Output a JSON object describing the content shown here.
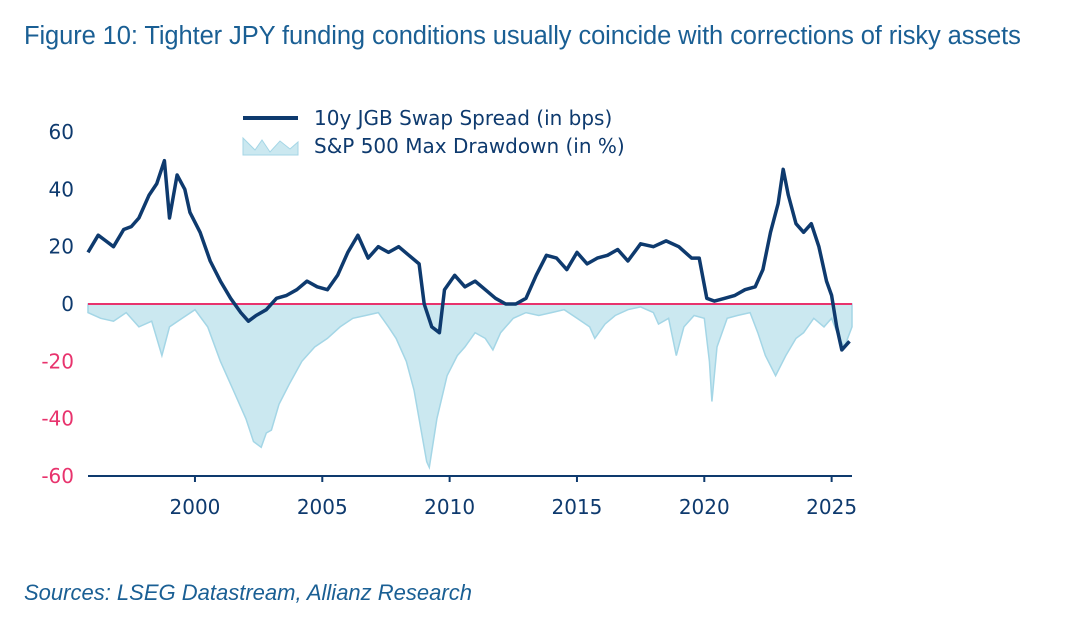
{
  "title": "Figure 10: Tighter JPY funding conditions usually coincide with corrections of risky assets",
  "source": "Sources: LSEG Datastream, Allianz Research",
  "colors": {
    "spread_line": "#0e3a6e",
    "drawdown_fill": "#cbe8f0",
    "drawdown_line": "#a4d6e6",
    "zero_line": "#e8336d",
    "positive_tick": "#0e3a6e",
    "negative_tick": "#e8336d",
    "title": "#1a5f94"
  },
  "chart_data": {
    "type": "line",
    "xlim": [
      1995.8,
      2025.8
    ],
    "ylim": [
      -60,
      60
    ],
    "x_ticks": [
      2000,
      2005,
      2010,
      2015,
      2020,
      2025
    ],
    "x_tick_labels": [
      "2000",
      "2005",
      "2010",
      "2015",
      "2020",
      "2025"
    ],
    "y_ticks": [
      60,
      40,
      20,
      0,
      -20,
      -40,
      -60
    ],
    "y_tick_labels": [
      "60",
      "40",
      "20",
      "0",
      "-20",
      "-40",
      "-60"
    ],
    "legend_position": "top-center",
    "grid": false,
    "series": [
      {
        "name": "10y JGB Swap Spread (in bps)",
        "type": "line",
        "x": [
          1995.8,
          1996.2,
          1996.5,
          1996.8,
          1997.2,
          1997.5,
          1997.8,
          1998.2,
          1998.5,
          1998.8,
          1999.0,
          1999.3,
          1999.6,
          1999.8,
          2000.2,
          2000.6,
          2001.0,
          2001.4,
          2001.8,
          2002.1,
          2002.4,
          2002.8,
          2003.2,
          2003.6,
          2004.0,
          2004.4,
          2004.8,
          2005.2,
          2005.6,
          2006.0,
          2006.4,
          2006.8,
          2007.2,
          2007.6,
          2008.0,
          2008.4,
          2008.8,
          2009.0,
          2009.3,
          2009.6,
          2009.8,
          2010.2,
          2010.6,
          2011.0,
          2011.4,
          2011.8,
          2012.2,
          2012.6,
          2013.0,
          2013.4,
          2013.8,
          2014.2,
          2014.6,
          2015.0,
          2015.4,
          2015.8,
          2016.2,
          2016.6,
          2017.0,
          2017.5,
          2018.0,
          2018.5,
          2019.0,
          2019.5,
          2019.8,
          2020.1,
          2020.4,
          2020.8,
          2021.2,
          2021.6,
          2022.0,
          2022.3,
          2022.6,
          2022.9,
          2023.1,
          2023.3,
          2023.6,
          2023.9,
          2024.2,
          2024.5,
          2024.8,
          2025.0,
          2025.2,
          2025.4,
          2025.7
        ],
        "y": [
          18,
          24,
          22,
          20,
          26,
          27,
          30,
          38,
          42,
          50,
          30,
          45,
          40,
          32,
          25,
          15,
          8,
          2,
          -3,
          -6,
          -4,
          -2,
          2,
          3,
          5,
          8,
          6,
          5,
          10,
          18,
          24,
          16,
          20,
          18,
          20,
          17,
          14,
          0,
          -8,
          -10,
          5,
          10,
          6,
          8,
          5,
          2,
          0,
          0,
          2,
          10,
          17,
          16,
          12,
          18,
          14,
          16,
          17,
          19,
          15,
          21,
          20,
          22,
          20,
          16,
          16,
          2,
          1,
          2,
          3,
          5,
          6,
          12,
          25,
          35,
          47,
          38,
          28,
          25,
          28,
          20,
          8,
          3,
          -8,
          -16,
          -13
        ]
      },
      {
        "name": "S&P 500 Max Drawdown (in %)",
        "type": "area",
        "x": [
          1995.8,
          1996.3,
          1996.8,
          1997.3,
          1997.8,
          1998.3,
          1998.7,
          1999.0,
          1999.5,
          2000.0,
          2000.5,
          2001.0,
          2001.5,
          2002.0,
          2002.3,
          2002.6,
          2002.8,
          2003.0,
          2003.3,
          2003.7,
          2004.2,
          2004.7,
          2005.2,
          2005.7,
          2006.2,
          2006.7,
          2007.2,
          2007.6,
          2007.9,
          2008.3,
          2008.6,
          2008.9,
          2009.1,
          2009.2,
          2009.5,
          2009.9,
          2010.3,
          2010.6,
          2011.0,
          2011.4,
          2011.7,
          2012.0,
          2012.5,
          2013.0,
          2013.5,
          2014.0,
          2014.5,
          2015.0,
          2015.5,
          2015.7,
          2016.1,
          2016.5,
          2017.0,
          2017.5,
          2018.0,
          2018.2,
          2018.6,
          2018.9,
          2019.2,
          2019.6,
          2020.0,
          2020.2,
          2020.3,
          2020.5,
          2020.9,
          2021.3,
          2021.8,
          2022.1,
          2022.4,
          2022.8,
          2023.2,
          2023.6,
          2023.9,
          2024.3,
          2024.7,
          2025.0,
          2025.3,
          2025.5,
          2025.8
        ],
        "y": [
          -3,
          -5,
          -6,
          -3,
          -8,
          -6,
          -18,
          -8,
          -5,
          -2,
          -8,
          -20,
          -30,
          -40,
          -48,
          -50,
          -45,
          -44,
          -35,
          -28,
          -20,
          -15,
          -12,
          -8,
          -5,
          -4,
          -3,
          -8,
          -12,
          -20,
          -30,
          -45,
          -55,
          -57,
          -40,
          -25,
          -18,
          -15,
          -10,
          -12,
          -16,
          -10,
          -5,
          -3,
          -4,
          -3,
          -2,
          -5,
          -8,
          -12,
          -7,
          -4,
          -2,
          -1,
          -3,
          -7,
          -5,
          -18,
          -8,
          -4,
          -5,
          -20,
          -34,
          -15,
          -5,
          -4,
          -3,
          -10,
          -18,
          -25,
          -18,
          -12,
          -10,
          -5,
          -8,
          -5,
          -12,
          -15,
          -8
        ]
      }
    ]
  }
}
